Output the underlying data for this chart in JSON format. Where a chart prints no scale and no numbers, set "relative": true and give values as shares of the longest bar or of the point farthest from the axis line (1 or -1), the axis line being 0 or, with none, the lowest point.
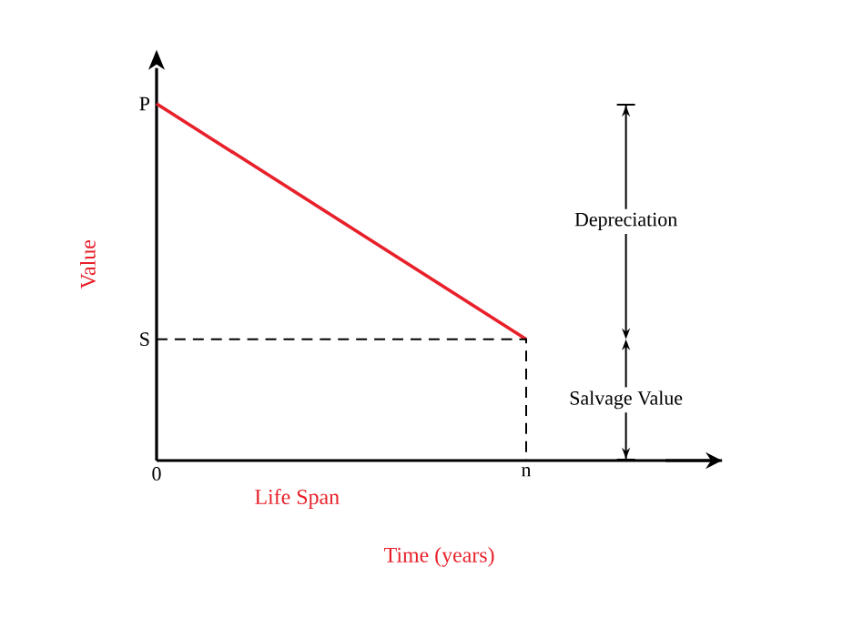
{
  "chart_data": {
    "type": "line",
    "xlabel": "Time (years)",
    "ylabel": "Value",
    "categories": [
      "0",
      "n"
    ],
    "relative": true,
    "series": [
      {
        "color": "#e8202a",
        "values": [
          1,
          0.34
        ]
      }
    ],
    "annotations": [
      "P",
      "S",
      "Life Span",
      "Depreciation",
      "Salvage Value"
    ]
  }
}
